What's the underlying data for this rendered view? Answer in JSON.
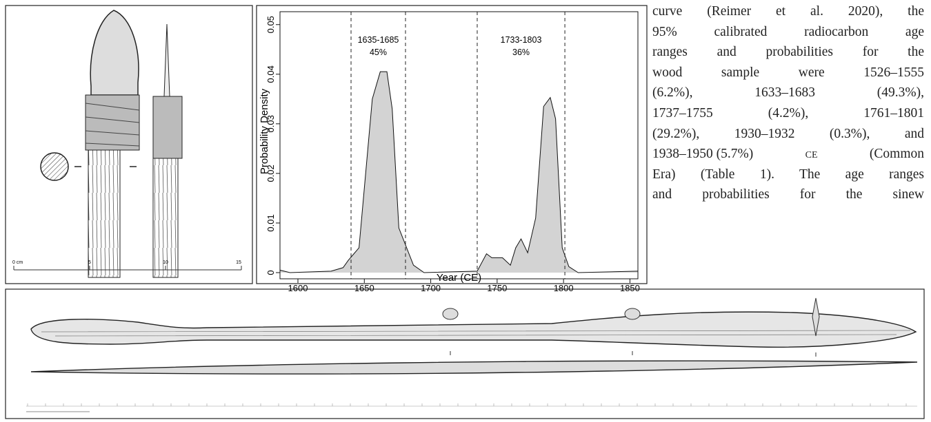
{
  "figure_left": {
    "scale": {
      "unit_label": "0 cm",
      "ticks": [
        "5",
        "10",
        "15"
      ]
    }
  },
  "chart_data": {
    "type": "area",
    "xlabel": "Year (CE)",
    "ylabel": "Probability Density",
    "x": [
      1586.5,
      1594,
      1625,
      1634,
      1638,
      1646,
      1656,
      1662,
      1667,
      1671,
      1676,
      1687,
      1695,
      1735,
      1742,
      1746,
      1754,
      1760,
      1764,
      1768,
      1773,
      1779,
      1785,
      1790,
      1794,
      1799,
      1804,
      1811,
      1856
    ],
    "values": [
      0.0005,
      0,
      0.0003,
      0.001,
      0.0025,
      0.005,
      0.035,
      0.0405,
      0.0405,
      0.033,
      0.009,
      0.0015,
      0,
      0.0003,
      0.0038,
      0.003,
      0.003,
      0.0015,
      0.005,
      0.0068,
      0.004,
      0.011,
      0.0335,
      0.0353,
      0.031,
      0.005,
      0.0012,
      0,
      0.0003
    ],
    "color": "#d3d3d3",
    "range_lines": [
      1640,
      1681,
      1735,
      1801
    ],
    "annotations": [
      {
        "range": "1635-1685",
        "prob": "45%"
      },
      {
        "range": "1733-1803",
        "prob": "36%"
      }
    ],
    "xlim": [
      1586.5,
      1856
    ],
    "ylim": [
      -0.00125,
      0.0526
    ],
    "xticks": [
      1600,
      1650,
      1700,
      1750,
      1800,
      1850
    ],
    "yticks": [
      0,
      0.01,
      0.02,
      0.03,
      0.04,
      0.05
    ]
  },
  "text": {
    "lines": [
      "curve (Reimer et al. 2020), the",
      "95% calibrated radiocarbon age",
      "ranges and probabilities for the",
      "wood sample were 1526–1555",
      "(6.2%), 1633–1683 (49.3%),",
      "1737–1755 (4.2%), 1761–1801",
      "(29.2%), 1930–1932 (0.3%), and",
      [
        "1938–1950 (5.7%)",
        "ce",
        "(Common"
      ],
      "Era) (Table 1). The age ranges",
      "and probabilities for the sinew"
    ]
  }
}
